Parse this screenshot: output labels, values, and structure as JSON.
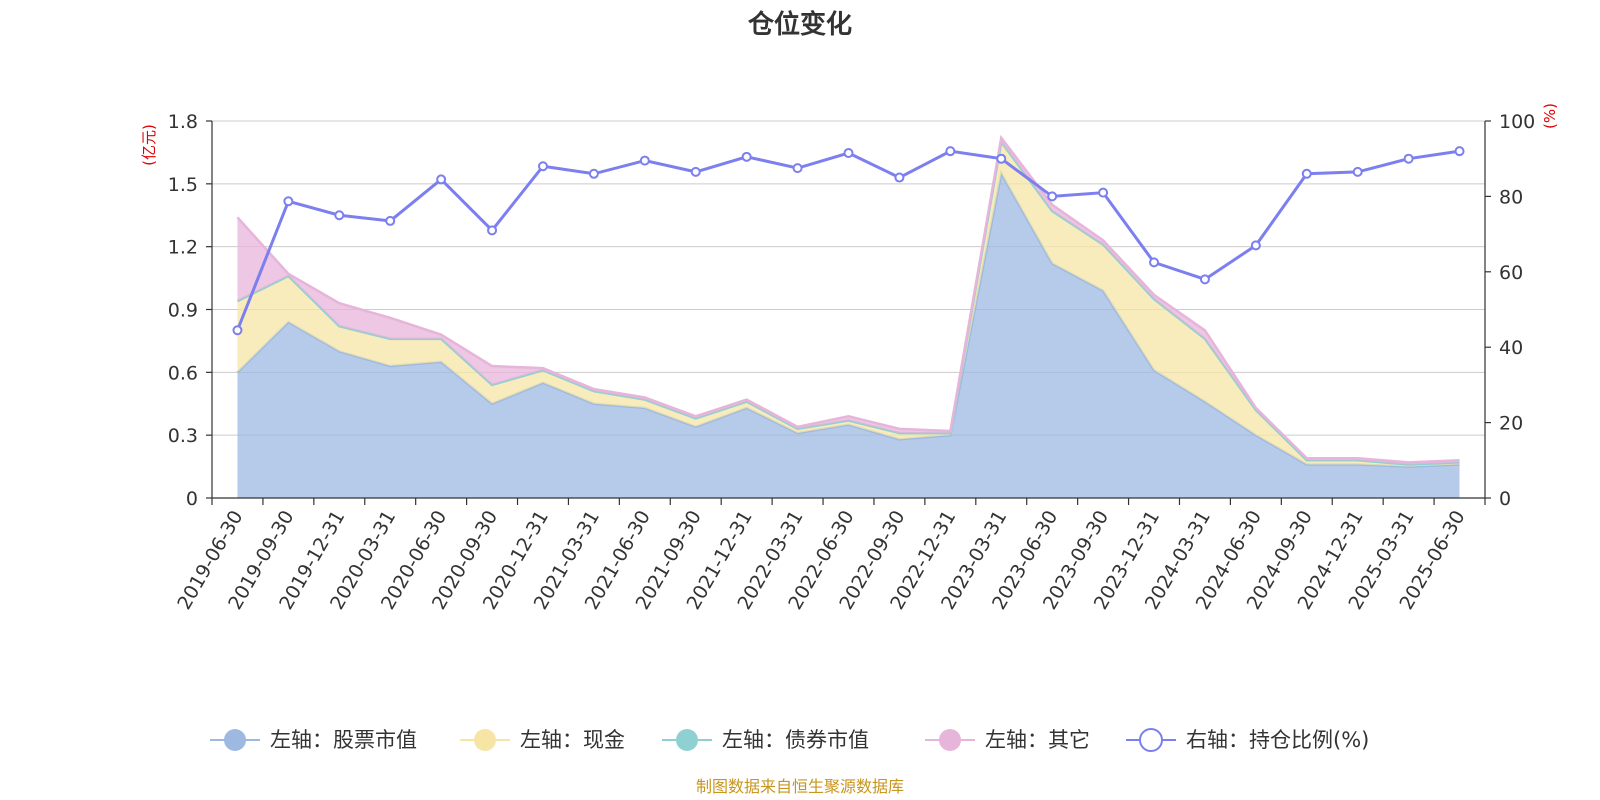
{
  "chart_data": {
    "type": "area",
    "title": "仓位变化",
    "left_unit": "(亿元)",
    "right_unit": "(%)",
    "categories": [
      "2019-06-30",
      "2019-09-30",
      "2019-12-31",
      "2020-03-31",
      "2020-06-30",
      "2020-09-30",
      "2020-12-31",
      "2021-03-31",
      "2021-06-30",
      "2021-09-30",
      "2021-12-31",
      "2022-03-31",
      "2022-06-30",
      "2022-09-30",
      "2022-12-31",
      "2023-03-31",
      "2023-06-30",
      "2023-09-30",
      "2023-12-31",
      "2024-03-31",
      "2024-06-30",
      "2024-09-30",
      "2024-12-31",
      "2025-03-31",
      "2025-06-30"
    ],
    "left_axis": {
      "min": 0,
      "max": 1.8,
      "ticks": [
        0,
        0.3,
        0.6,
        0.9,
        1.2,
        1.5,
        1.8
      ],
      "tick_labels": [
        "0",
        "0.3",
        "0.6",
        "0.9",
        "1.2",
        "1.5",
        "1.8"
      ]
    },
    "right_axis": {
      "min": 0,
      "max": 100,
      "ticks": [
        0,
        20,
        40,
        60,
        80,
        100
      ],
      "tick_labels": [
        "0",
        "20",
        "40",
        "60",
        "80",
        "100"
      ]
    },
    "grid": true,
    "legend_position": "bottom",
    "series": [
      {
        "name": "左轴：股票市值",
        "axis": "left",
        "type": "area",
        "color": "#9db9e1",
        "values": [
          0.6,
          0.84,
          0.7,
          0.63,
          0.65,
          0.45,
          0.55,
          0.45,
          0.43,
          0.34,
          0.43,
          0.31,
          0.35,
          0.28,
          0.3,
          1.55,
          1.12,
          0.99,
          0.61,
          0.46,
          0.3,
          0.16,
          0.16,
          0.15,
          0.16
        ]
      },
      {
        "name": "左轴：现金",
        "axis": "left",
        "type": "area",
        "color": "#f7e5a6",
        "values": [
          0.34,
          0.22,
          0.12,
          0.13,
          0.11,
          0.09,
          0.06,
          0.06,
          0.04,
          0.04,
          0.03,
          0.02,
          0.02,
          0.03,
          0.01,
          0.15,
          0.25,
          0.22,
          0.34,
          0.3,
          0.12,
          0.02,
          0.02,
          0.01,
          0.01
        ]
      },
      {
        "name": "左轴：债券市值",
        "axis": "left",
        "type": "area",
        "color": "#8fd1d2",
        "values": [
          0,
          0,
          0,
          0,
          0,
          0,
          0,
          0,
          0,
          0,
          0,
          0,
          0,
          0,
          0,
          0,
          0,
          0,
          0,
          0,
          0,
          0,
          0,
          0,
          0
        ]
      },
      {
        "name": "左轴：其它",
        "axis": "left",
        "type": "area",
        "color": "#e7b4da",
        "values": [
          0.4,
          0.01,
          0.11,
          0.1,
          0.02,
          0.09,
          0.01,
          0.01,
          0.01,
          0.01,
          0.01,
          0.01,
          0.02,
          0.02,
          0.01,
          0.02,
          0.03,
          0.02,
          0.02,
          0.04,
          0.01,
          0.01,
          0.01,
          0.01,
          0.01
        ]
      },
      {
        "name": "右轴：持仓比例(%)",
        "axis": "right",
        "type": "line",
        "color": "#7b7fef",
        "values": [
          44.5,
          78.7,
          75.0,
          73.5,
          84.5,
          71.0,
          88.0,
          86.0,
          89.5,
          86.5,
          90.5,
          87.5,
          91.5,
          85.0,
          92.0,
          90.0,
          80.0,
          81.0,
          62.5,
          58.0,
          67.0,
          86.0,
          86.5,
          90.0,
          92.0
        ]
      }
    ]
  },
  "source": "制图数据来自恒生聚源数据库"
}
